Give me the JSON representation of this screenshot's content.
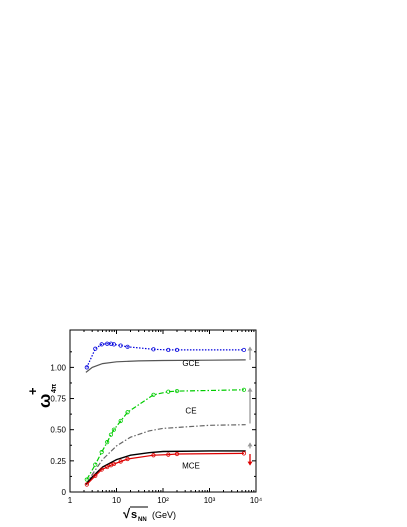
{
  "chart_data": {
    "type": "line",
    "title": "",
    "xscale": "log",
    "xlim": [
      1,
      10000
    ],
    "ylim": [
      0,
      1.3
    ],
    "x_ticks": [
      1,
      10,
      100,
      1000,
      10000
    ],
    "x_tick_labels": [
      "1",
      "10",
      "10²",
      "10³",
      "10⁴"
    ],
    "y_ticks": [
      0,
      0.25,
      0.5,
      0.75,
      1.0
    ],
    "y_tick_labels": [
      "0",
      "0.25",
      "0.50",
      "0.75",
      "1.00"
    ],
    "xlabel": {
      "radical": "√",
      "base": "s",
      "sub": "NN",
      "unit": "(GeV)"
    },
    "ylabel": {
      "base": "ω",
      "sup": "+",
      "sub": "4π"
    },
    "region_labels": [
      {
        "text": "GCE",
        "x": 400,
        "y": 1.01
      },
      {
        "text": "CE",
        "x": 400,
        "y": 0.63
      },
      {
        "text": "MCE",
        "x": 400,
        "y": 0.19
      }
    ],
    "series": [
      {
        "color": "#0000dd",
        "style": "dotted",
        "marker": "circle",
        "x": [
          2.3,
          3.5,
          4.8,
          6.3,
          7.6,
          8.8,
          12.3,
          17.3,
          62.4,
          130,
          200,
          5500
        ],
        "y": [
          1.0,
          1.15,
          1.185,
          1.19,
          1.19,
          1.185,
          1.175,
          1.165,
          1.145,
          1.14,
          1.14,
          1.14
        ]
      },
      {
        "color": "#555555",
        "style": "solid",
        "marker": "none",
        "x": [
          2.2,
          3,
          5,
          10,
          30,
          100,
          1000,
          6000
        ],
        "y": [
          0.96,
          1.0,
          1.03,
          1.045,
          1.052,
          1.055,
          1.058,
          1.06
        ]
      },
      {
        "color": "#00cc00",
        "style": "dashdot",
        "marker": "circle",
        "x": [
          2.3,
          3.5,
          4.8,
          6.3,
          7.6,
          8.8,
          12.3,
          17.3,
          62.4,
          130,
          200,
          5500
        ],
        "y": [
          0.1,
          0.22,
          0.32,
          0.4,
          0.46,
          0.5,
          0.57,
          0.64,
          0.78,
          0.805,
          0.81,
          0.82
        ]
      },
      {
        "color": "#666666",
        "style": "dashdot",
        "marker": "none",
        "x": [
          2.2,
          3,
          5,
          10,
          20,
          50,
          100,
          1000,
          6000
        ],
        "y": [
          0.06,
          0.14,
          0.26,
          0.37,
          0.44,
          0.49,
          0.51,
          0.535,
          0.54
        ]
      },
      {
        "color": "#000000",
        "style": "solid",
        "marker": "none",
        "x": [
          2.2,
          3,
          5,
          10,
          20,
          50,
          100,
          1000,
          6000
        ],
        "y": [
          0.06,
          0.12,
          0.2,
          0.26,
          0.295,
          0.315,
          0.325,
          0.33,
          0.33
        ]
      },
      {
        "color": "#dd0000",
        "style": "solid",
        "marker": "circle",
        "x": [
          2.3,
          3.5,
          4.8,
          6.3,
          7.6,
          8.8,
          12.3,
          17.3,
          62.4,
          130,
          200,
          5500
        ],
        "y": [
          0.06,
          0.13,
          0.18,
          0.2,
          0.215,
          0.225,
          0.245,
          0.265,
          0.295,
          0.3,
          0.305,
          0.31
        ]
      }
    ],
    "indicators": [
      {
        "color": "#999999",
        "from": 1.06,
        "to": 1.16,
        "head": "up"
      },
      {
        "color": "#999999",
        "from": 0.55,
        "to": 0.83,
        "head": "up"
      },
      {
        "color": "#999999",
        "from": 0.35,
        "to": 0.39,
        "head": "up"
      },
      {
        "color": "#dd0000",
        "from": 0.305,
        "to": 0.22,
        "head": "down"
      }
    ]
  }
}
